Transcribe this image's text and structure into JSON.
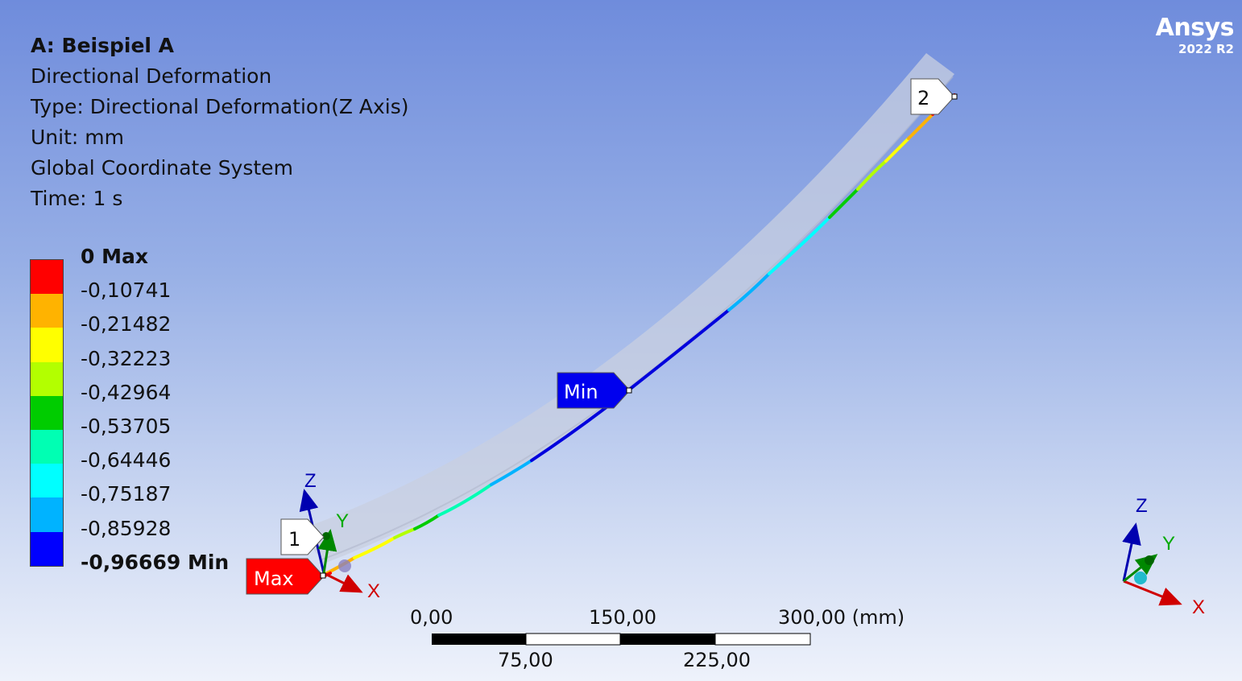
{
  "logo": {
    "name": "Ansys",
    "version": "2022 R2"
  },
  "info": {
    "title": "A: Beispiel A",
    "result_name": "Directional Deformation",
    "type": "Type: Directional Deformation(Z Axis)",
    "unit": "Unit: mm",
    "coord_system": "Global Coordinate System",
    "time": "Time: 1 s"
  },
  "legend": {
    "labels": [
      "0 Max",
      "-0,10741",
      "-0,21482",
      "-0,32223",
      "-0,42964",
      "-0,53705",
      "-0,64446",
      "-0,75187",
      "-0,85928",
      "-0,96669 Min"
    ],
    "colors": [
      "#ff0000",
      "#ffb300",
      "#ffff00",
      "#b3ff00",
      "#00cc00",
      "#00ffb3",
      "#00ffff",
      "#00b3ff",
      "#0000ff"
    ]
  },
  "probes": {
    "max_label": "Max",
    "min_label": "Min",
    "point1_label": "1",
    "point2_label": "2"
  },
  "triad": {
    "x": "X",
    "y": "Y",
    "z": "Z"
  },
  "scale_bar": {
    "top": [
      "0,00",
      "150,00",
      "300,00 (mm)"
    ],
    "bottom": [
      "75,00",
      "225,00"
    ]
  }
}
